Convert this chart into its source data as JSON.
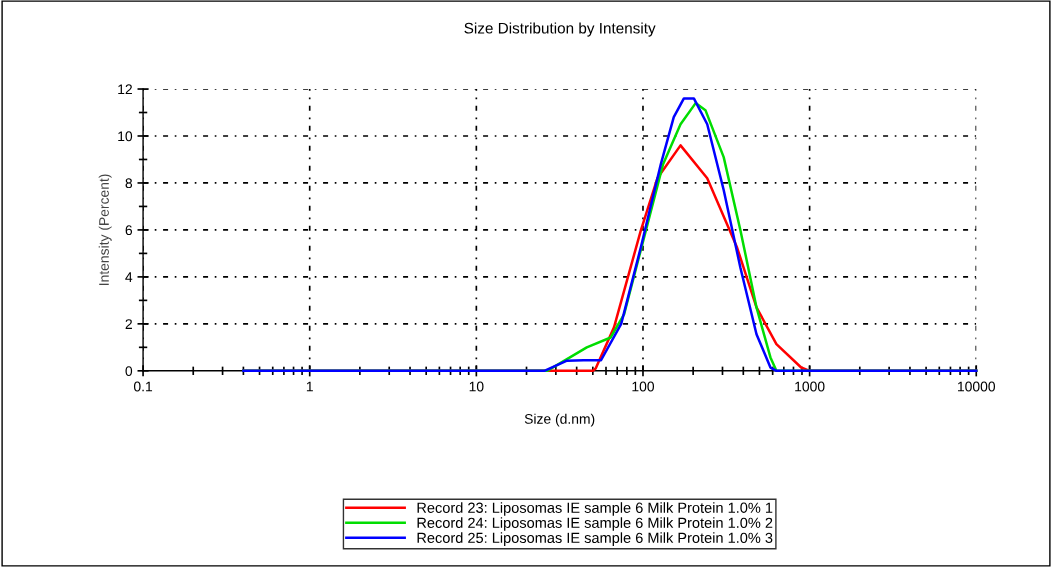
{
  "chart_data": {
    "type": "line",
    "title": "Size Distribution by Intensity",
    "xlabel": "Size (d.nm)",
    "ylabel": "Intensity (Percent)",
    "log": "x",
    "xlim": [
      0.1,
      10000
    ],
    "xticks": [
      0.1,
      1,
      10,
      100,
      1000,
      10000
    ],
    "ylim": [
      0,
      12
    ],
    "yticks": [
      0,
      2,
      4,
      6,
      8,
      10,
      12
    ],
    "grid": true,
    "legend": "bottom",
    "line_style": "solid",
    "series": [
      {
        "name": "Record 23: Liposomas IE sample 6 Milk Protein 1.0% 1",
        "color": "#ff0000",
        "x": [
          0.4,
          25,
          50,
          52,
          67,
          97,
          122,
          168,
          243,
          367,
          480,
          632,
          890,
          1000,
          10000
        ],
        "values": [
          0,
          0,
          0,
          0.1,
          1.85,
          5.97,
          8.2,
          9.6,
          8.2,
          5.25,
          2.7,
          1.14,
          0.14,
          0,
          0
        ]
      },
      {
        "name": "Record 24: Liposomas IE sample 6 Milk Protein 1.0% 2",
        "color": "#00dd00",
        "x": [
          0.4,
          26.6,
          46,
          64,
          77,
          100,
          132,
          168,
          207,
          237,
          305,
          384,
          480,
          582,
          632,
          10000
        ],
        "values": [
          0,
          0,
          1.0,
          1.42,
          2.4,
          5.5,
          8.8,
          10.5,
          11.4,
          11.1,
          9.1,
          6.0,
          2.7,
          0.57,
          0,
          0
        ]
      },
      {
        "name": "Record 25: Liposomas IE sample 6 Milk Protein 1.0% 3",
        "color": "#0000ff",
        "x": [
          0.4,
          25.6,
          35,
          44,
          56,
          74,
          97,
          128,
          153,
          176,
          202,
          243,
          305,
          384,
          480,
          582,
          632,
          10000
        ],
        "values": [
          0,
          0,
          0.43,
          0.45,
          0.45,
          2.0,
          5.25,
          8.8,
          10.8,
          11.6,
          11.6,
          10.5,
          7.7,
          4.4,
          1.56,
          0.14,
          0,
          0
        ]
      }
    ]
  }
}
